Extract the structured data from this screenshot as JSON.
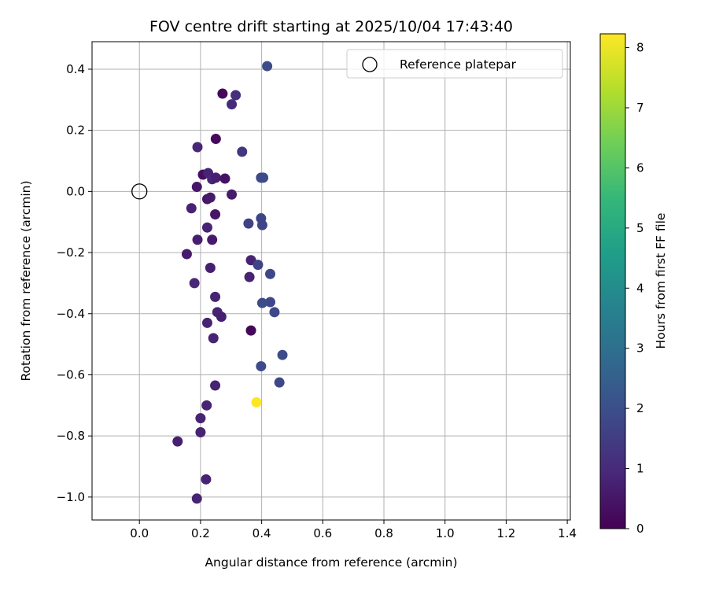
{
  "chart_data": {
    "type": "scatter",
    "title": "FOV centre drift starting at 2025/10/04 17:43:40",
    "xlabel": "Angular distance from reference (arcmin)",
    "ylabel": "Rotation from reference (arcmin)",
    "xlim": [
      -0.155,
      1.41
    ],
    "ylim": [
      -1.075,
      0.49
    ],
    "xticks": [
      0.0,
      0.2,
      0.4,
      0.6,
      0.8,
      1.0,
      1.2,
      1.4
    ],
    "xtick_labels": [
      "0.0",
      "0.2",
      "0.4",
      "0.6",
      "0.8",
      "1.0",
      "1.2",
      "1.4"
    ],
    "yticks": [
      0.4,
      0.2,
      0.0,
      -0.2,
      -0.4,
      -0.6,
      -0.8,
      -1.0
    ],
    "ytick_labels": [
      "0.4",
      "0.2",
      "0.0",
      "−0.2",
      "−0.4",
      "−0.6",
      "−0.8",
      "−1.0"
    ],
    "grid": true,
    "legend": {
      "position": "top-right",
      "entries": [
        "Reference platepar"
      ]
    },
    "reference_point": {
      "x": 0.0,
      "y": 0.0
    },
    "colorbar": {
      "label": "Hours from first FF file",
      "range": [
        0,
        8.23
      ],
      "ticks": [
        0,
        1,
        2,
        3,
        4,
        5,
        6,
        7,
        8
      ],
      "tick_labels": [
        "0",
        "1",
        "2",
        "3",
        "4",
        "5",
        "6",
        "7",
        "8"
      ],
      "colormap": [
        "#440154",
        "#482878",
        "#3e4989",
        "#31688e",
        "#26828e",
        "#1f9e89",
        "#35b779",
        "#6ece58",
        "#b5de2b",
        "#fde725"
      ]
    },
    "points": [
      {
        "x": 0.418,
        "y": 0.41,
        "h": 1.9
      },
      {
        "x": 0.272,
        "y": 0.32,
        "h": 0.15
      },
      {
        "x": 0.315,
        "y": 0.315,
        "h": 1.1
      },
      {
        "x": 0.302,
        "y": 0.285,
        "h": 1.0
      },
      {
        "x": 0.25,
        "y": 0.172,
        "h": 0.2
      },
      {
        "x": 0.19,
        "y": 0.145,
        "h": 0.9
      },
      {
        "x": 0.336,
        "y": 0.13,
        "h": 1.3
      },
      {
        "x": 0.208,
        "y": 0.055,
        "h": 0.3
      },
      {
        "x": 0.225,
        "y": 0.06,
        "h": 0.8
      },
      {
        "x": 0.238,
        "y": 0.04,
        "h": 0.9
      },
      {
        "x": 0.25,
        "y": 0.045,
        "h": 0.7
      },
      {
        "x": 0.28,
        "y": 0.042,
        "h": 0.4
      },
      {
        "x": 0.398,
        "y": 0.045,
        "h": 1.8
      },
      {
        "x": 0.405,
        "y": 0.045,
        "h": 1.9
      },
      {
        "x": 0.188,
        "y": 0.015,
        "h": 0.5
      },
      {
        "x": 0.302,
        "y": -0.01,
        "h": 0.6
      },
      {
        "x": 0.222,
        "y": -0.025,
        "h": 0.5
      },
      {
        "x": 0.232,
        "y": -0.02,
        "h": 0.6
      },
      {
        "x": 0.17,
        "y": -0.055,
        "h": 0.8
      },
      {
        "x": 0.248,
        "y": -0.075,
        "h": 0.5
      },
      {
        "x": 0.398,
        "y": -0.088,
        "h": 1.7
      },
      {
        "x": 0.357,
        "y": -0.105,
        "h": 1.6
      },
      {
        "x": 0.402,
        "y": -0.11,
        "h": 1.7
      },
      {
        "x": 0.222,
        "y": -0.118,
        "h": 0.8
      },
      {
        "x": 0.19,
        "y": -0.158,
        "h": 0.7
      },
      {
        "x": 0.238,
        "y": -0.158,
        "h": 0.6
      },
      {
        "x": 0.155,
        "y": -0.205,
        "h": 0.6
      },
      {
        "x": 0.365,
        "y": -0.225,
        "h": 0.8
      },
      {
        "x": 0.388,
        "y": -0.24,
        "h": 1.7
      },
      {
        "x": 0.232,
        "y": -0.25,
        "h": 0.7
      },
      {
        "x": 0.428,
        "y": -0.27,
        "h": 1.8
      },
      {
        "x": 0.36,
        "y": -0.28,
        "h": 0.8
      },
      {
        "x": 0.18,
        "y": -0.3,
        "h": 0.9
      },
      {
        "x": 0.248,
        "y": -0.345,
        "h": 0.8
      },
      {
        "x": 0.428,
        "y": -0.362,
        "h": 1.8
      },
      {
        "x": 0.402,
        "y": -0.365,
        "h": 1.9
      },
      {
        "x": 0.442,
        "y": -0.395,
        "h": 1.8
      },
      {
        "x": 0.255,
        "y": -0.395,
        "h": 0.8
      },
      {
        "x": 0.268,
        "y": -0.41,
        "h": 0.7
      },
      {
        "x": 0.222,
        "y": -0.43,
        "h": 0.8
      },
      {
        "x": 0.365,
        "y": -0.455,
        "h": 0.15
      },
      {
        "x": 0.242,
        "y": -0.48,
        "h": 0.8
      },
      {
        "x": 0.468,
        "y": -0.535,
        "h": 1.9
      },
      {
        "x": 0.398,
        "y": -0.572,
        "h": 1.9
      },
      {
        "x": 0.458,
        "y": -0.625,
        "h": 1.8
      },
      {
        "x": 0.248,
        "y": -0.635,
        "h": 0.8
      },
      {
        "x": 0.383,
        "y": -0.69,
        "h": 8.2
      },
      {
        "x": 0.22,
        "y": -0.7,
        "h": 0.8
      },
      {
        "x": 0.2,
        "y": -0.742,
        "h": 0.8
      },
      {
        "x": 0.2,
        "y": -0.788,
        "h": 0.8
      },
      {
        "x": 0.125,
        "y": -0.818,
        "h": 0.7
      },
      {
        "x": 0.218,
        "y": -0.942,
        "h": 0.8
      },
      {
        "x": 0.188,
        "y": -1.005,
        "h": 0.8
      }
    ]
  }
}
